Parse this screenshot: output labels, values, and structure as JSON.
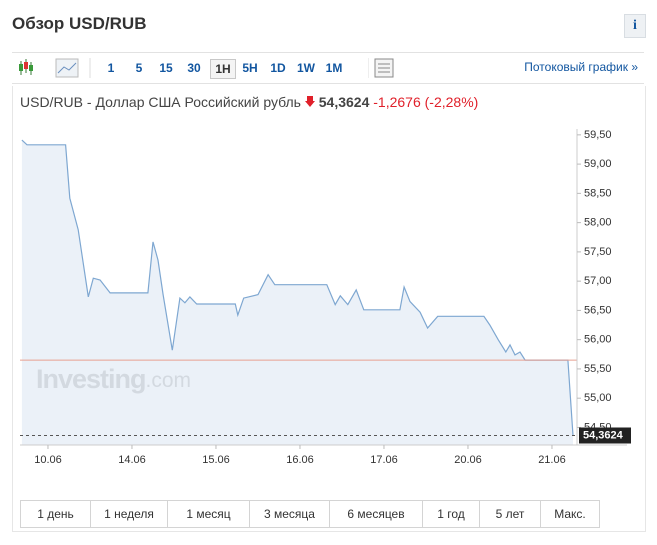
{
  "header": {
    "title": "Обзор USD/RUB",
    "info": "i"
  },
  "toolbar": {
    "intervals": [
      "1",
      "5",
      "15",
      "30",
      "1H",
      "5H",
      "1D",
      "1W",
      "1M"
    ],
    "selected": "1H",
    "stream_link": "Потоковый график »"
  },
  "quote": {
    "name": "USD/RUB - Доллар США Российский рубль",
    "price": "54,3624",
    "change": "-1,2676",
    "change_pct": "(-2,28%)"
  },
  "chart_data": {
    "type": "line",
    "watermark_brand": "Investing",
    "watermark_suffix": ".com",
    "x": [
      -0.31,
      -0.25,
      0.21,
      0.26,
      0.36,
      0.48,
      0.54,
      0.62,
      0.74,
      1.19,
      1.25,
      1.31,
      1.37,
      1.48,
      1.57,
      1.63,
      1.69,
      1.77,
      2.23,
      2.26,
      2.33,
      2.5,
      2.62,
      2.7,
      3.32,
      3.42,
      3.48,
      3.57,
      3.67,
      3.76,
      4.19,
      4.24,
      4.31,
      4.43,
      4.52,
      4.64,
      5.19,
      5.26,
      5.36,
      5.45,
      5.5,
      5.56,
      5.62,
      5.68,
      6.19,
      6.25
    ],
    "series": [
      {
        "name": "USD/RUB",
        "color": "#7ea7d1",
        "values": [
          59.41,
          59.33,
          59.33,
          58.42,
          57.88,
          56.73,
          57.05,
          57.02,
          56.8,
          56.8,
          57.67,
          57.36,
          56.77,
          55.82,
          56.71,
          56.63,
          56.73,
          56.61,
          56.61,
          56.42,
          56.71,
          56.77,
          57.11,
          56.94,
          56.94,
          56.6,
          56.75,
          56.6,
          56.85,
          56.51,
          56.51,
          56.9,
          56.65,
          56.47,
          56.2,
          56.4,
          56.4,
          56.25,
          56.0,
          55.79,
          55.91,
          55.74,
          55.79,
          55.65,
          55.65,
          54.3624
        ]
      }
    ],
    "reference_line": {
      "value": 55.65,
      "color": "#e8a090"
    },
    "current": {
      "value": 54.3624,
      "label": "54,3624"
    },
    "xlim": [
      -0.333,
      6.298
    ],
    "ylim": [
      54.2,
      59.6
    ],
    "xticks": [
      {
        "value": 0,
        "label": "10.06"
      },
      {
        "value": 1,
        "label": "14.06"
      },
      {
        "value": 2,
        "label": "15.06"
      },
      {
        "value": 3,
        "label": "16.06"
      },
      {
        "value": 4,
        "label": "17.06"
      },
      {
        "value": 5,
        "label": "20.06"
      },
      {
        "value": 6,
        "label": "21.06"
      }
    ],
    "yticks": [
      {
        "value": 59.5,
        "label": "59,50"
      },
      {
        "value": 59,
        "label": "59,00"
      },
      {
        "value": 58.5,
        "label": "58,50"
      },
      {
        "value": 58,
        "label": "58,00"
      },
      {
        "value": 57.5,
        "label": "57,50"
      },
      {
        "value": 57,
        "label": "57,00"
      },
      {
        "value": 56.5,
        "label": "56,50"
      },
      {
        "value": 56,
        "label": "56,00"
      },
      {
        "value": 55.5,
        "label": "55,50"
      },
      {
        "value": 55,
        "label": "55,00"
      },
      {
        "value": 54.5,
        "label": "54,50"
      }
    ]
  },
  "ranges": [
    "1 день",
    "1 неделя",
    "1 месяц",
    "3 месяца",
    "6 месяцев",
    "1 год",
    "5 лет",
    "Макс."
  ]
}
